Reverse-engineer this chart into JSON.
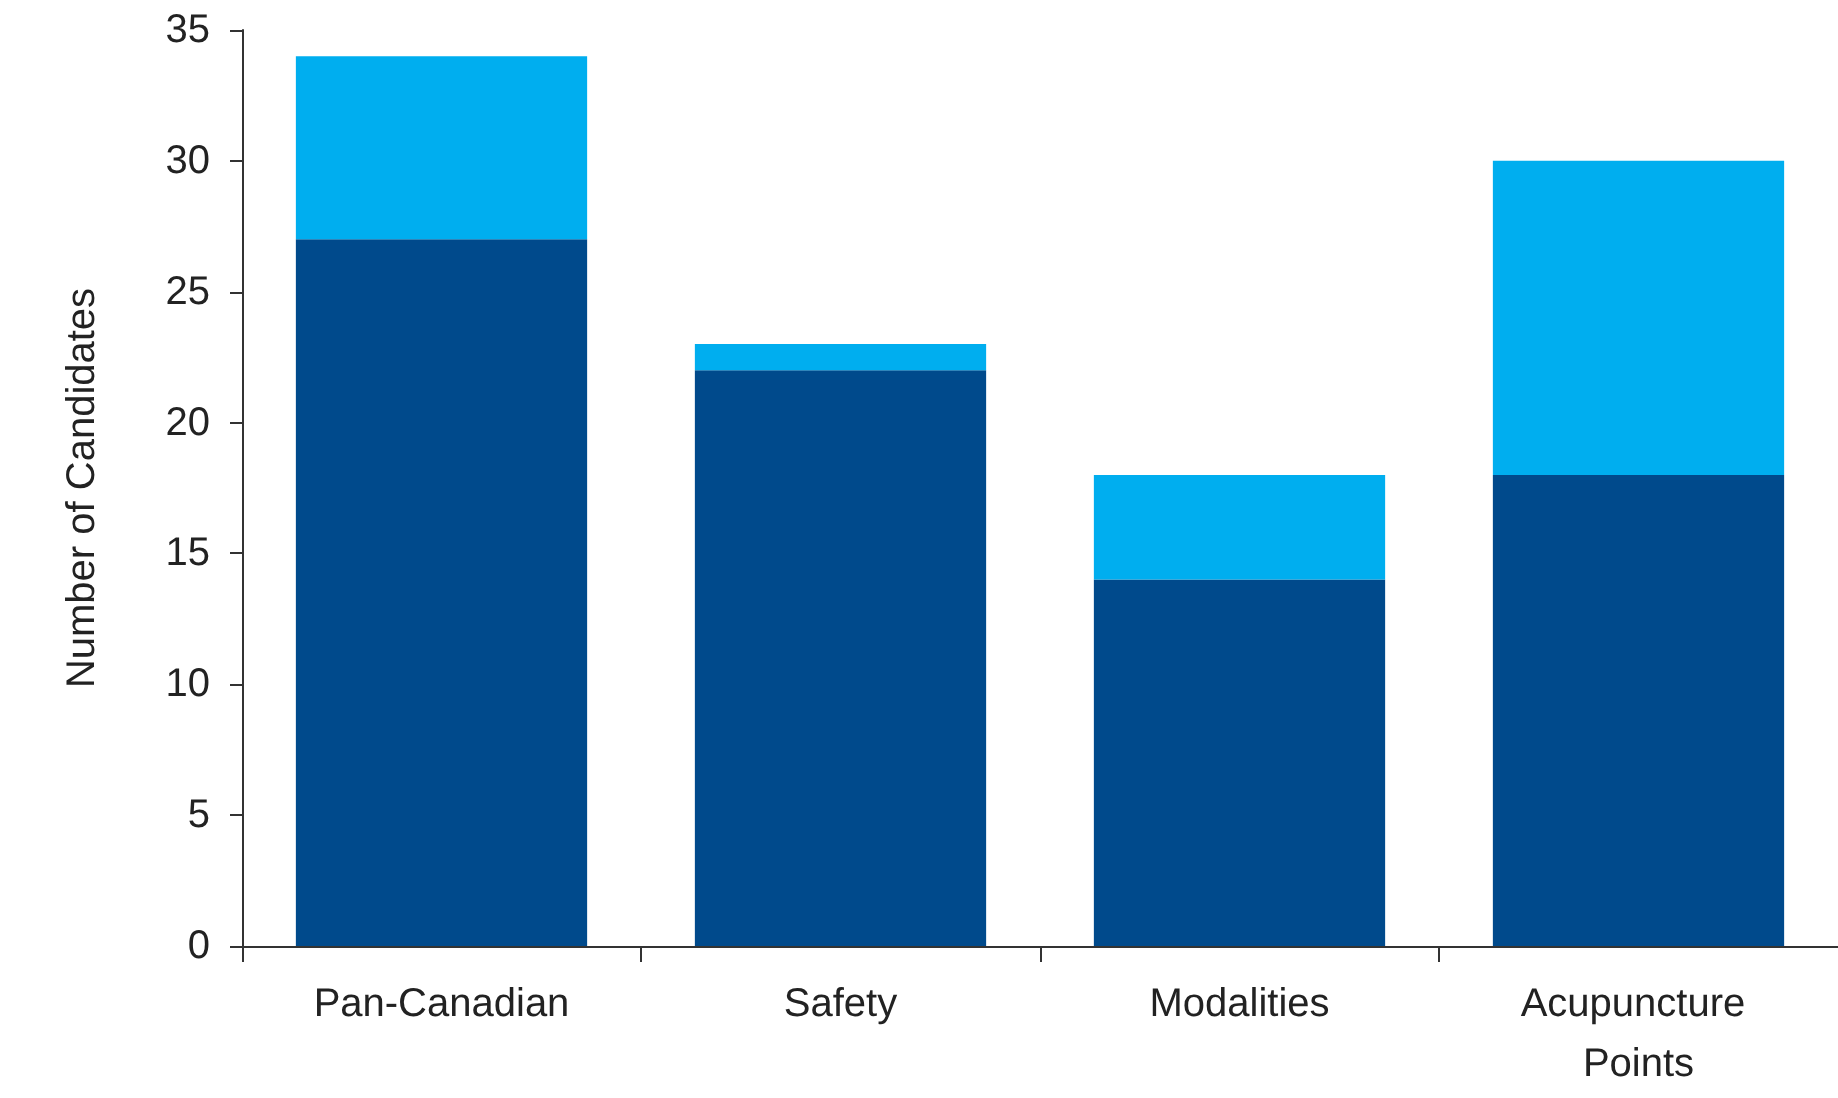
{
  "chart_data": {
    "type": "bar",
    "ylabel": "Number of Candidates",
    "categories": [
      "Pan-Canadian",
      "Safety",
      "Modalities",
      "Acupuncture Points"
    ],
    "stacked": true,
    "series": [
      {
        "color": "#004a8c",
        "values": [
          27,
          22,
          14,
          18
        ]
      },
      {
        "color": "#00aeef",
        "values": [
          7,
          1,
          4,
          12
        ]
      }
    ],
    "ylim": [
      0,
      35
    ],
    "yticks": [
      0,
      5,
      10,
      15,
      20,
      25,
      30,
      35
    ],
    "grid": false
  }
}
